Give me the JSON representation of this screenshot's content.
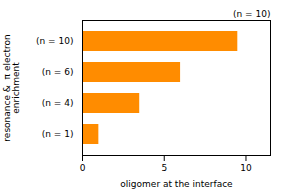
{
  "chart_data": {
    "type": "bar",
    "orientation": "horizontal",
    "categories": [
      "(n = 1)",
      "(n = 4)",
      "(n = 6)",
      "(n = 10)"
    ],
    "values": [
      1.0,
      3.5,
      6.0,
      9.5
    ],
    "color": "#FF8C00",
    "xlabel": "oligomer at the interface",
    "ylabel": "resonance &  π electron\nenrichment",
    "xlim": [
      0,
      11.5
    ],
    "xticks": [
      0,
      5,
      10
    ],
    "annotations": [
      "(n = 10)"
    ],
    "grid": false
  }
}
